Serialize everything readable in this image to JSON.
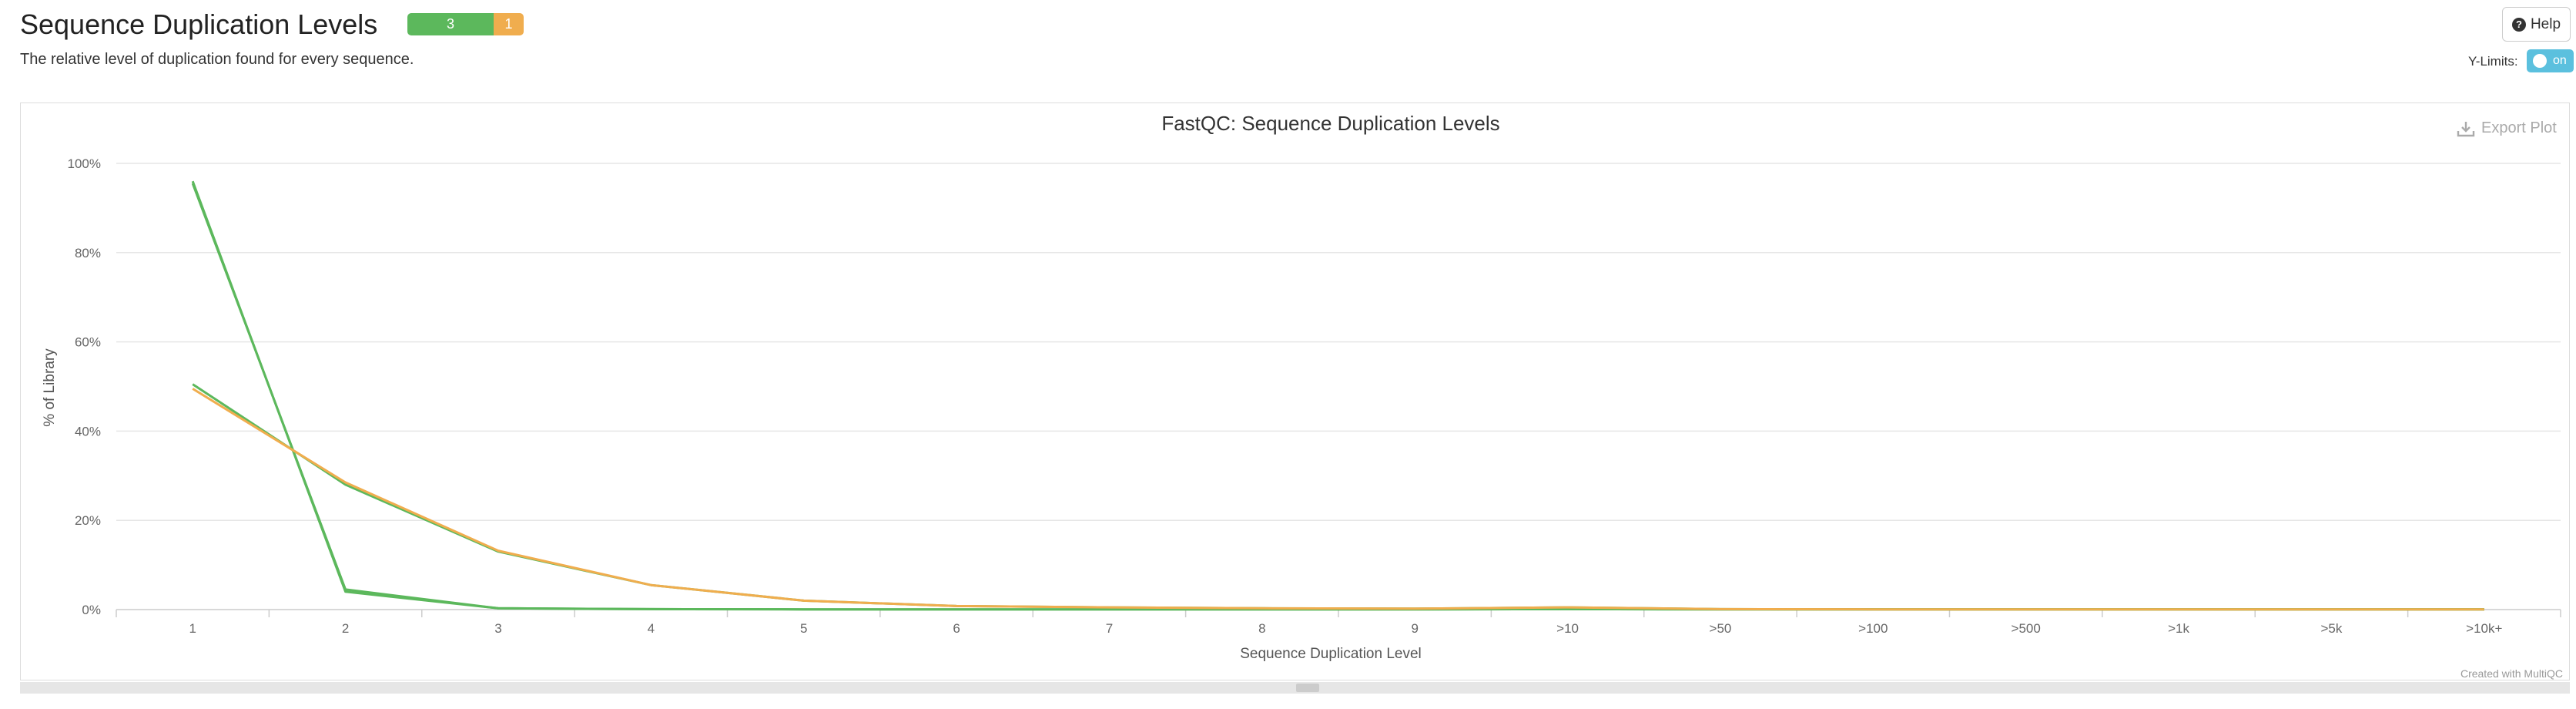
{
  "header": {
    "title": "Sequence Duplication Levels",
    "status_pass_count": "3",
    "status_warn_count": "1",
    "description": "The relative level of duplication found for every sequence.",
    "help_label": "Help",
    "ylimits_label": "Y-Limits:",
    "toggle_label": "on"
  },
  "colors": {
    "pass": "#5cb85c",
    "warn": "#f0ad4e",
    "toggle": "#5bc0de",
    "series_green": "#5cb85c",
    "series_orange": "#f0ad4e"
  },
  "export_label": "Export Plot",
  "credit": "Created with MultiQC",
  "chart_data": {
    "type": "line",
    "title": "FastQC: Sequence Duplication Levels",
    "xlabel": "Sequence Duplication Level",
    "ylabel": "% of Library",
    "categories": [
      "1",
      "2",
      "3",
      "4",
      "5",
      "6",
      "7",
      "8",
      "9",
      ">10",
      ">50",
      ">100",
      ">500",
      ">1k",
      ">5k",
      ">10k+"
    ],
    "ylim": [
      0,
      100
    ],
    "yticks": [
      "0%",
      "20%",
      "40%",
      "60%",
      "80%",
      "100%"
    ],
    "grid": true,
    "series": [
      {
        "color": "#5cb85c",
        "values": [
          95.5,
          4.5,
          0.3,
          0.1,
          0.05,
          0.05,
          0.05,
          0.05,
          0.05,
          0.1,
          0.05,
          0.05,
          0.05,
          0.05,
          0.05,
          0.05
        ]
      },
      {
        "color": "#5cb85c",
        "values": [
          96.0,
          4.0,
          0.3,
          0.1,
          0.05,
          0.05,
          0.05,
          0.05,
          0.05,
          0.1,
          0.05,
          0.05,
          0.05,
          0.05,
          0.05,
          0.05
        ]
      },
      {
        "color": "#5cb85c",
        "values": [
          50.5,
          28.0,
          13.0,
          5.5,
          2.0,
          0.8,
          0.5,
          0.3,
          0.2,
          0.5,
          0.1,
          0.05,
          0.05,
          0.05,
          0.05,
          0.05
        ]
      },
      {
        "color": "#f0ad4e",
        "values": [
          49.5,
          28.5,
          13.2,
          5.5,
          2.0,
          0.8,
          0.5,
          0.3,
          0.2,
          0.5,
          0.1,
          0.05,
          0.05,
          0.05,
          0.05,
          0.05
        ]
      }
    ]
  }
}
